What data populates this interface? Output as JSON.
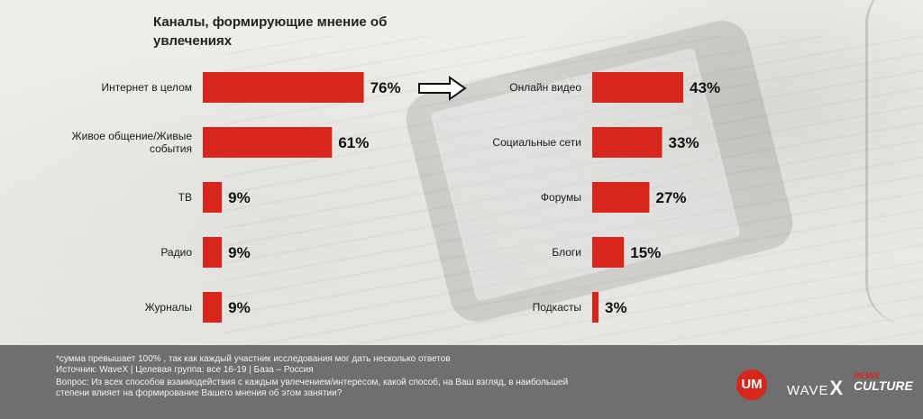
{
  "title": "Каналы, формирующие мнение об увлечениях",
  "chart_data": [
    {
      "type": "bar",
      "orientation": "horizontal",
      "categories": [
        "Интернет в целом",
        "Живое общение/Живые события",
        "ТВ",
        "Радио",
        "Журналы"
      ],
      "values": [
        76,
        61,
        9,
        9,
        9
      ],
      "value_labels": [
        "76%",
        "61%",
        "9%",
        "9%",
        "9%"
      ],
      "xlim": [
        0,
        100
      ],
      "bar_color": "#d7261b"
    },
    {
      "type": "bar",
      "orientation": "horizontal",
      "categories": [
        "Онлайн видео",
        "Социальные сети",
        "Форумы",
        "Блоги",
        "Подкасты"
      ],
      "values": [
        43,
        33,
        27,
        15,
        3
      ],
      "value_labels": [
        "43%",
        "33%",
        "27%",
        "15%",
        "3%"
      ],
      "xlim": [
        0,
        100
      ],
      "bar_color": "#d7261b"
    }
  ],
  "arrow_icon": "right-arrow-icon",
  "footer": {
    "note1": "*сумма превышает 100% , так как каждый участник исследования мог дать несколько ответов",
    "note2": "Источник:  WaveX | Целевая группа: все 16-19 | База  – Россия",
    "note3": "Вопрос: Из всех способов взаимодействия с каждым увлечением/интересом, какой способ, на Ваш взгляд, в наибольшей",
    "note4": "степени влияет на формирование Вашего мнения об этом занятии?"
  },
  "logos": {
    "um": "UM",
    "wave": "WAVE",
    "wave_x": "X",
    "remix_top": "REMIX",
    "remix_bottom": "CULTURE"
  },
  "colors": {
    "bar": "#d7261b",
    "footer_bg": "#555555",
    "text": "#1a1a1a"
  }
}
